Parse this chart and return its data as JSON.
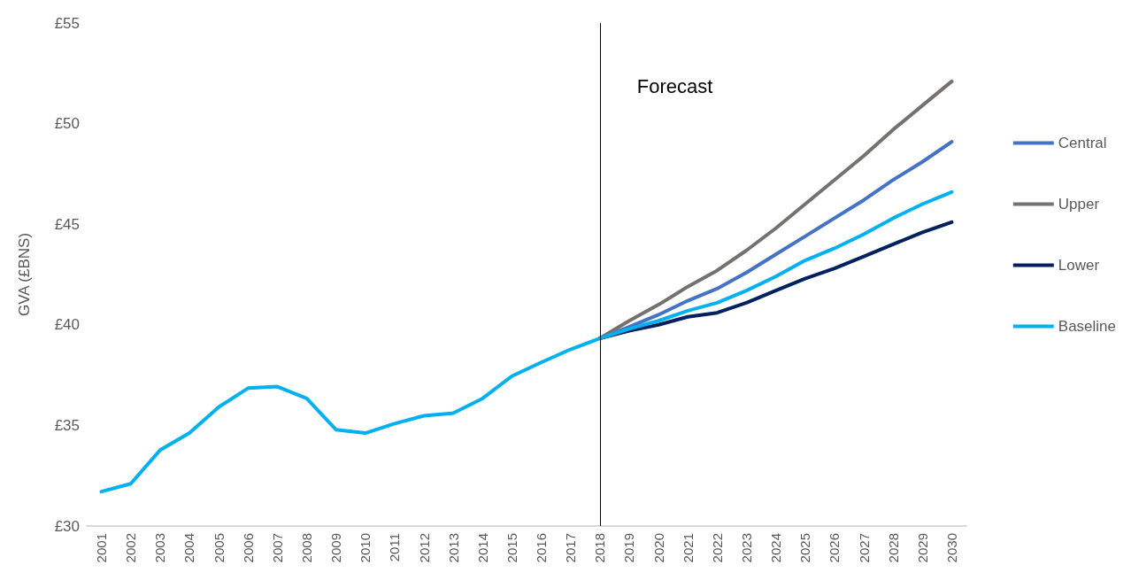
{
  "chart_data": {
    "type": "line",
    "ylabel": "GVA (£BNS)",
    "categories": [
      "2001",
      "2002",
      "2003",
      "2004",
      "2005",
      "2006",
      "2007",
      "2008",
      "2009",
      "2010",
      "2011",
      "2012",
      "2013",
      "2014",
      "2015",
      "2016",
      "2017",
      "2018",
      "2019",
      "2020",
      "2021",
      "2022",
      "2023",
      "2024",
      "2025",
      "2026",
      "2027",
      "2028",
      "2029",
      "2030"
    ],
    "series": [
      {
        "name": "Central",
        "color": "#4472c4",
        "values": [
          null,
          null,
          null,
          null,
          null,
          null,
          null,
          null,
          null,
          null,
          null,
          null,
          null,
          null,
          null,
          null,
          null,
          39.33,
          39.9,
          40.5,
          41.2,
          41.8,
          42.6,
          43.5,
          44.4,
          45.3,
          46.2,
          47.2,
          48.1,
          49.1
        ]
      },
      {
        "name": "Upper",
        "color": "#767171",
        "values": [
          null,
          null,
          null,
          null,
          null,
          null,
          null,
          null,
          null,
          null,
          null,
          null,
          null,
          null,
          null,
          null,
          null,
          39.33,
          40.2,
          41.0,
          41.9,
          42.7,
          43.7,
          44.8,
          46.0,
          47.2,
          48.4,
          49.7,
          50.9,
          52.1
        ]
      },
      {
        "name": "Lower",
        "color": "#002060",
        "values": [
          null,
          null,
          null,
          null,
          null,
          null,
          null,
          null,
          null,
          null,
          null,
          null,
          null,
          null,
          null,
          null,
          null,
          39.33,
          39.7,
          40.0,
          40.4,
          40.6,
          41.1,
          41.7,
          42.3,
          42.8,
          43.4,
          44.0,
          44.6,
          45.1
        ]
      },
      {
        "name": "Baseline",
        "color": "#00b0f0",
        "values": [
          31.71,
          32.1,
          33.77,
          34.62,
          35.91,
          36.85,
          36.93,
          36.34,
          34.79,
          34.62,
          35.09,
          35.48,
          35.61,
          36.34,
          37.45,
          38.13,
          38.78,
          39.33,
          39.8,
          40.2,
          40.7,
          41.1,
          41.7,
          42.4,
          43.2,
          43.8,
          44.5,
          45.3,
          46.0,
          46.6
        ]
      }
    ],
    "ylim": [
      30,
      55
    ],
    "yticks": [
      {
        "value": 30,
        "label": "£30"
      },
      {
        "value": 35,
        "label": "£35"
      },
      {
        "value": 40,
        "label": "£40"
      },
      {
        "value": 45,
        "label": "£45"
      },
      {
        "value": 50,
        "label": "£50"
      },
      {
        "value": 55,
        "label": "£55"
      }
    ],
    "ref_lines": [
      {
        "axis": "x",
        "value": "2018",
        "label": "Forecast",
        "color": "#000000"
      }
    ],
    "grid": false,
    "legend": "right",
    "marker": "none",
    "line_style": "solid"
  }
}
